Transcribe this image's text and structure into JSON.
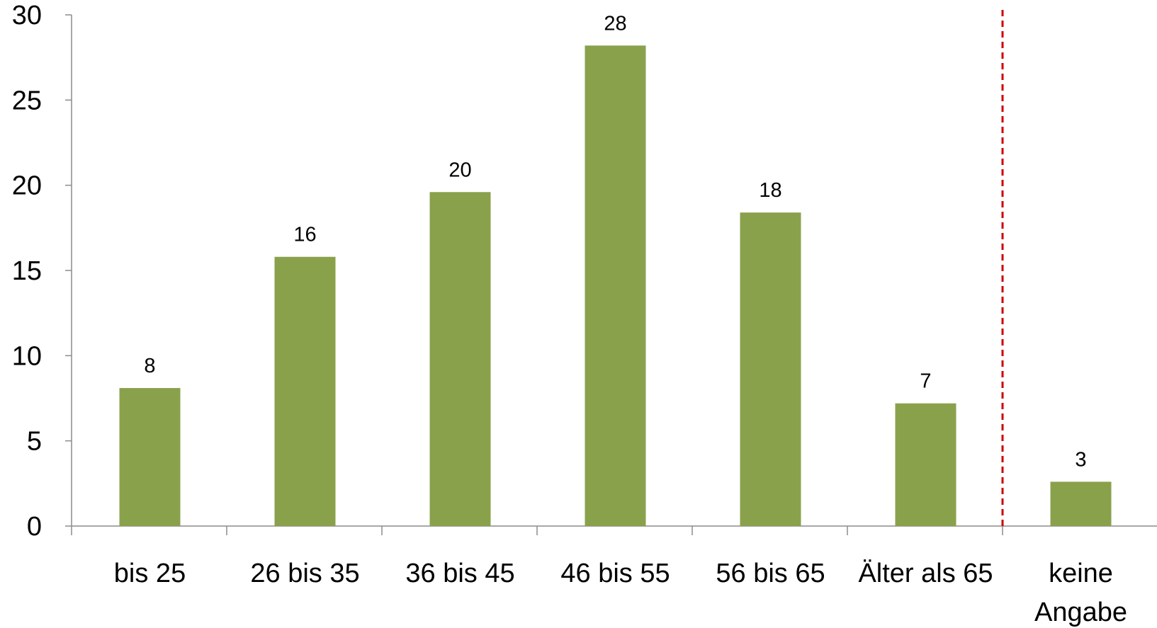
{
  "chart_data": {
    "type": "bar",
    "categories": [
      "bis 25",
      "26 bis 35",
      "36 bis 45",
      "46 bis 55",
      "56 bis 65",
      "Älter als 65",
      "keine Angabe"
    ],
    "category_lines": [
      [
        "bis 25"
      ],
      [
        "26 bis 35"
      ],
      [
        "36 bis 45"
      ],
      [
        "46 bis 55"
      ],
      [
        "56 bis 65"
      ],
      [
        "Älter als 65"
      ],
      [
        "keine",
        "Angabe"
      ]
    ],
    "values": [
      8.1,
      15.8,
      19.6,
      28.2,
      18.4,
      7.2,
      2.6
    ],
    "data_labels": [
      "8",
      "16",
      "20",
      "28",
      "18",
      "7",
      "3"
    ],
    "ylim": [
      0,
      30
    ],
    "yticks": [
      0,
      5,
      10,
      15,
      20,
      25,
      30
    ],
    "title": "",
    "xlabel": "",
    "ylabel": "",
    "grid": false,
    "legend": "none",
    "separator_after_category_index": 5,
    "colors": {
      "bar": "#8aa14c",
      "axis": "#8c8c8c",
      "separator": "#cc0000",
      "text": "#000000"
    }
  }
}
